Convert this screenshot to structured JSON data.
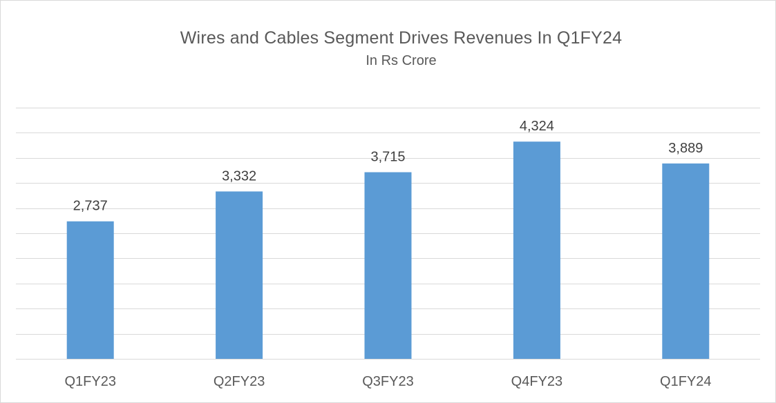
{
  "chart_data": {
    "type": "bar",
    "title": "Wires and Cables Segment Drives Revenues  In Q1FY24",
    "subtitle": "In Rs Crore",
    "categories": [
      "Q1FY23",
      "Q2FY23",
      "Q3FY23",
      "Q4FY23",
      "Q1FY24"
    ],
    "values": [
      2737,
      3332,
      3715,
      4324,
      3889
    ],
    "value_labels": [
      "2,737",
      "3,332",
      "3,715",
      "4,324",
      "3,889"
    ],
    "xlabel": "",
    "ylabel": "",
    "ylim": [
      0,
      5000
    ],
    "grid": true,
    "legend": "none",
    "bar_color": "#5b9bd5"
  }
}
